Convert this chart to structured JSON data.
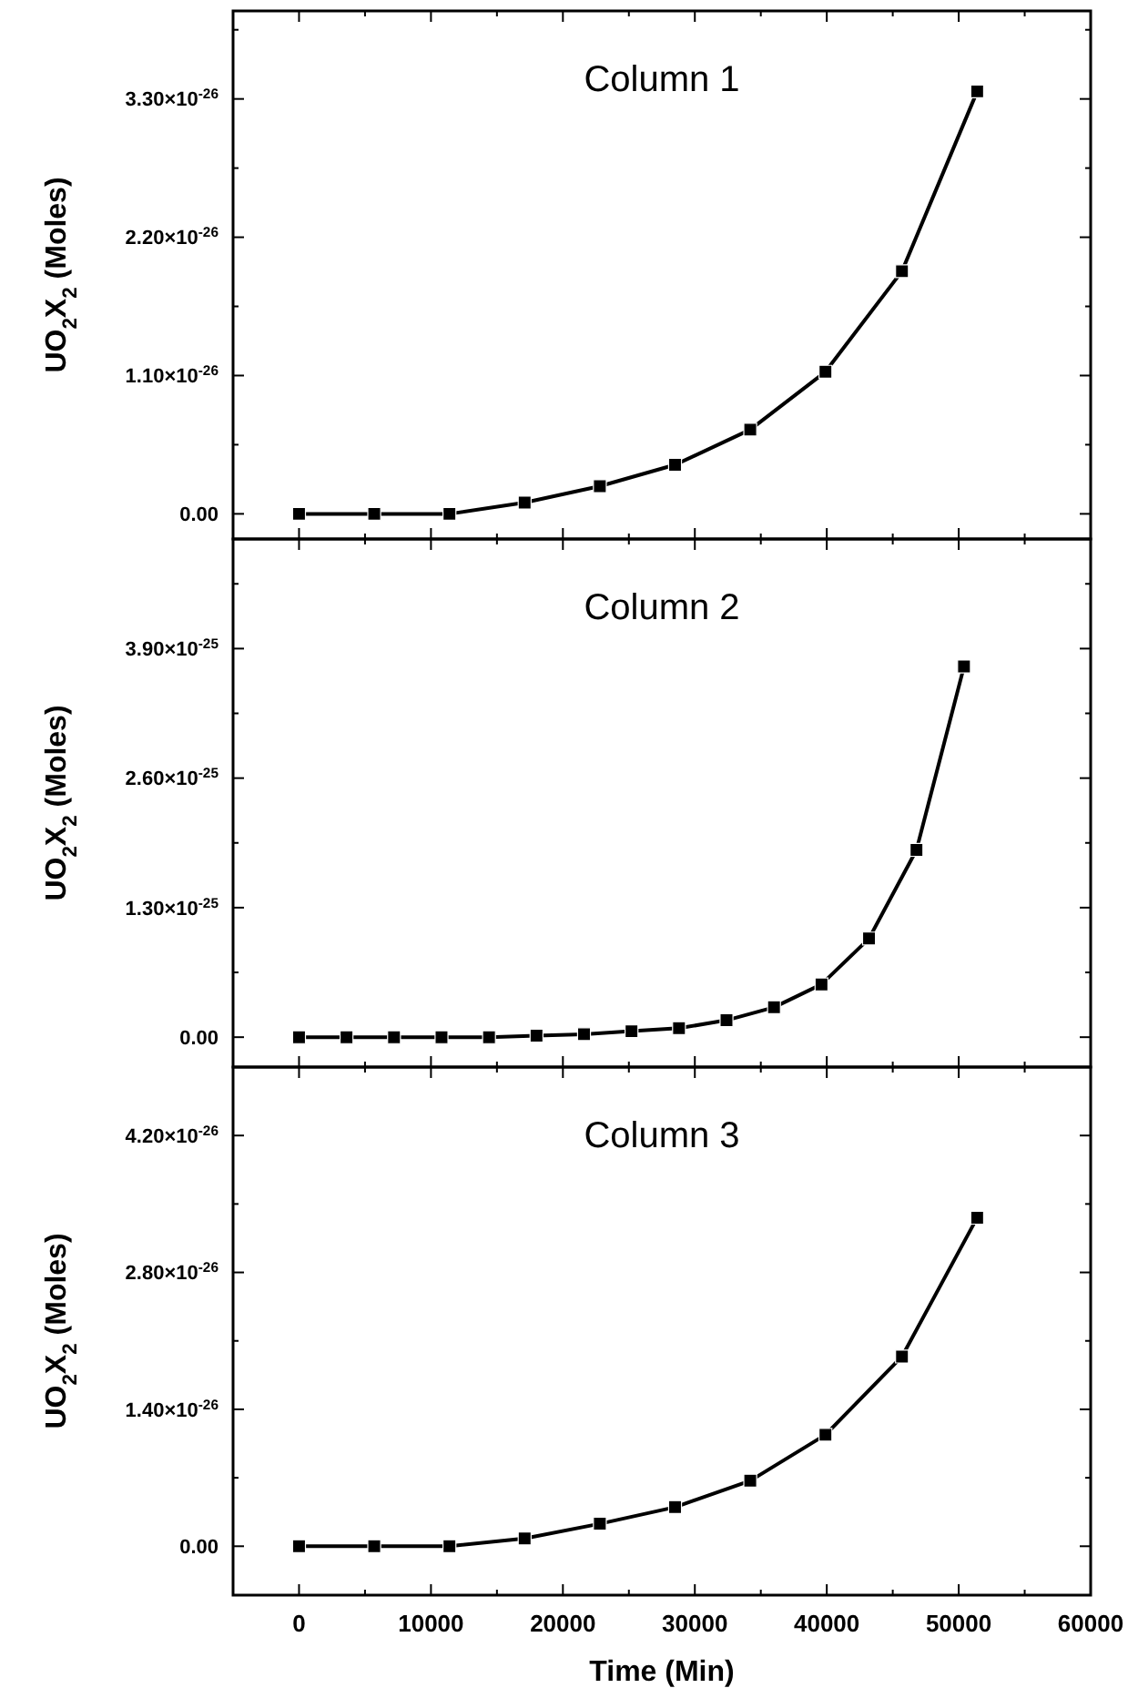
{
  "chart_data": [
    {
      "type": "line",
      "title": "Column 1",
      "ylabel": "UO$_{2}$X$_{2}$ (Moles)",
      "marker": "square",
      "line_style": "solid",
      "tick_labels": "y",
      "xlim": [
        -5000,
        60000
      ],
      "xticks": [
        0,
        10000,
        20000,
        30000,
        40000,
        50000,
        60000
      ],
      "ylim": [
        -2e-27,
        4e-26
      ],
      "yticks": [
        {
          "value": 0,
          "label": "0.00"
        },
        {
          "value": 1.1e-26,
          "label": "1.10×10$^{-26}$"
        },
        {
          "value": 2.2e-26,
          "label": "2.20×10$^{-26}$"
        },
        {
          "value": 3.3e-26,
          "label": "3.30×10$^{-26}$"
        }
      ],
      "series": [
        {
          "color": "#000000",
          "x": [
            0,
            5700,
            11400,
            17100,
            22800,
            28500,
            34200,
            39900,
            45700,
            51400
          ],
          "values": [
            0,
            0,
            0,
            9e-28,
            2.2e-27,
            3.9e-27,
            6.7e-27,
            1.13e-26,
            1.93e-26,
            3.36e-26
          ]
        }
      ]
    },
    {
      "type": "line",
      "title": "Column 2",
      "ylabel": "UO$_{2}$X$_{2}$ (Moles)",
      "marker": "square",
      "line_style": "solid",
      "tick_labels": "y",
      "xlim": [
        -5000,
        60000
      ],
      "xticks": [
        0,
        10000,
        20000,
        30000,
        40000,
        50000,
        60000
      ],
      "ylim": [
        -3e-26,
        5e-25
      ],
      "yticks": [
        {
          "value": 0,
          "label": "0.00"
        },
        {
          "value": 1.3e-25,
          "label": "1.30×10$^{-25}$"
        },
        {
          "value": 2.6e-25,
          "label": "2.60×10$^{-25}$"
        },
        {
          "value": 3.9e-25,
          "label": "3.90×10$^{-25}$"
        }
      ],
      "series": [
        {
          "color": "#000000",
          "x": [
            0,
            3600,
            7200,
            10800,
            14400,
            18000,
            21600,
            25200,
            28800,
            32400,
            36000,
            39600,
            43200,
            46800,
            50400
          ],
          "values": [
            0,
            0,
            0,
            0,
            0,
            1.5e-27,
            3e-27,
            6e-27,
            9e-27,
            1.7e-26,
            3e-26,
            5.3e-26,
            9.9e-26,
            1.88e-25,
            3.72e-25
          ]
        }
      ]
    },
    {
      "type": "line",
      "title": "Column 3",
      "xlabel": "Time (Min)",
      "ylabel": "UO$_{2}$X$_{2}$ (Moles)",
      "marker": "square",
      "line_style": "solid",
      "xlim": [
        -5000,
        60000
      ],
      "xticks": [
        0,
        10000,
        20000,
        30000,
        40000,
        50000,
        60000
      ],
      "ylim": [
        -5e-27,
        4.9e-26
      ],
      "yticks": [
        {
          "value": 0,
          "label": "0.00"
        },
        {
          "value": 1.4e-26,
          "label": "1.40×10$^{-26}$"
        },
        {
          "value": 2.8e-26,
          "label": "2.80×10$^{-26}$"
        },
        {
          "value": 4.2e-26,
          "label": "4.20×10$^{-26}$"
        }
      ],
      "series": [
        {
          "color": "#000000",
          "x": [
            0,
            5700,
            11400,
            17100,
            22800,
            28500,
            34200,
            39900,
            45700,
            51400
          ],
          "values": [
            0,
            0,
            0,
            8e-28,
            2.3e-27,
            4e-27,
            6.7e-27,
            1.14e-26,
            1.94e-26,
            3.36e-26
          ]
        }
      ]
    }
  ]
}
